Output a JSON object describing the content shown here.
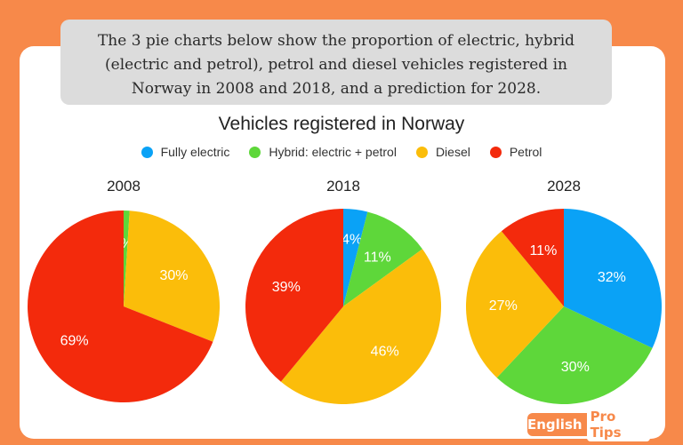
{
  "intro_text": "The 3 pie charts below show the proportion of electric, hybrid (electric and petrol), petrol and diesel vehicles registered in Norway in 2008 and 2018, and a prediction for 2028.",
  "brand": {
    "part1": "English",
    "part2": "Pro Tips"
  },
  "colors": {
    "Fully electric": "#0aa2f6",
    "Hybrid: electric + petrol": "#5ed73a",
    "Diesel": "#fbbd0a",
    "Petrol": "#f32a0c"
  },
  "chart_data": {
    "type": "pie",
    "title": "Vehicles registered in Norway",
    "legend": [
      "Fully electric",
      "Hybrid: electric + petrol",
      "Diesel",
      "Petrol"
    ],
    "legend_position": "top-center",
    "pies": [
      {
        "title": "2008",
        "slices": [
          {
            "category": "Fully electric",
            "value": 0
          },
          {
            "category": "Hybrid: electric + petrol",
            "value": 1,
            "label": "1%"
          },
          {
            "category": "Diesel",
            "value": 30,
            "label": "30%"
          },
          {
            "category": "Petrol",
            "value": 69,
            "label": "69%"
          }
        ]
      },
      {
        "title": "2018",
        "slices": [
          {
            "category": "Fully electric",
            "value": 4,
            "label": "4%"
          },
          {
            "category": "Hybrid: electric + petrol",
            "value": 11,
            "label": "11%"
          },
          {
            "category": "Diesel",
            "value": 46,
            "label": "46%"
          },
          {
            "category": "Petrol",
            "value": 39,
            "label": "39%"
          }
        ]
      },
      {
        "title": "2028",
        "slices": [
          {
            "category": "Fully electric",
            "value": 32,
            "label": "32%"
          },
          {
            "category": "Hybrid: electric + petrol",
            "value": 30,
            "label": "30%"
          },
          {
            "category": "Diesel",
            "value": 27,
            "label": "27%"
          },
          {
            "category": "Petrol",
            "value": 11,
            "label": "11%"
          }
        ]
      }
    ]
  }
}
